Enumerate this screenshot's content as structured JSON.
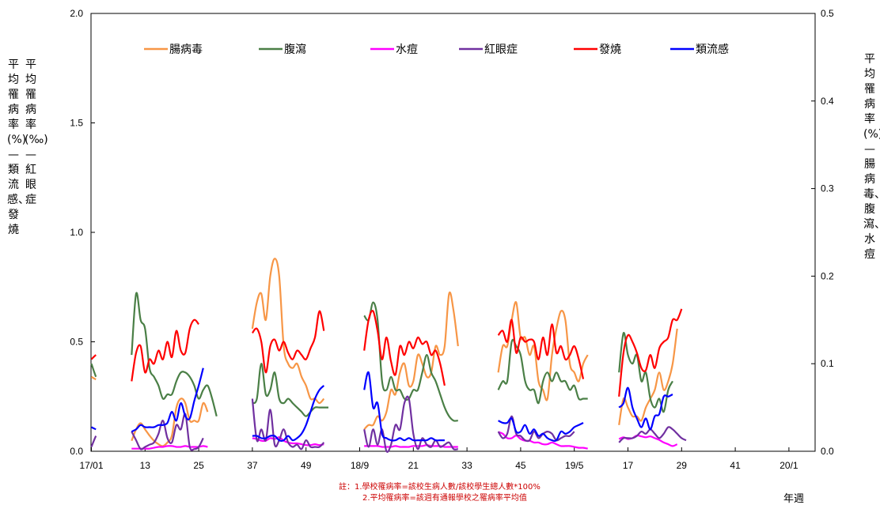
{
  "chart_data": {
    "type": "line",
    "left_axis_label_1": "平均罹病率(‰)—紅眼症",
    "left_axis_label_2": "平均罹病率(%)—類流感、發燒",
    "right_axis_label": "平均罹病率(%)—腸病毒、腹瀉、水痘",
    "xlabel": "年週",
    "y_left_lim": [
      0,
      2.0
    ],
    "y_right_lim": [
      0,
      0.5
    ],
    "y_left_ticks": [
      "0.0",
      "0.5",
      "1.0",
      "1.5",
      "2.0"
    ],
    "y_right_ticks": [
      "0.0",
      "0.1",
      "0.2",
      "0.3",
      "0.4",
      "0.5"
    ],
    "x_ticks": [
      "17/01",
      "13",
      "25",
      "37",
      "49",
      "18/9",
      "21",
      "33",
      "45",
      "19/5",
      "17",
      "29",
      "41",
      "20/1"
    ],
    "legend_placement": "top",
    "grid": false,
    "series": [
      {
        "name": "腸病毒",
        "color": "#f79646",
        "axis": "right",
        "segments": [
          {
            "start": 0,
            "values": [
              0.085,
              0.082
            ]
          },
          {
            "start": 9,
            "values": [
              0.012,
              0.025,
              0.032,
              0.025,
              0.018,
              0.012,
              0.008,
              0.006,
              0.01,
              0.018,
              0.05,
              0.06,
              0.055,
              0.035,
              0.035,
              0.035,
              0.055,
              0.045
            ]
          },
          {
            "start": 36,
            "values": [
              0.14,
              0.17,
              0.18,
              0.15,
              0.2,
              0.22,
              0.2,
              0.12,
              0.1,
              0.095,
              0.1,
              0.085,
              0.075,
              0.06,
              0.06,
              0.055,
              0.06
            ]
          },
          {
            "start": 61,
            "values": [
              0.025,
              0.03,
              0.03,
              0.04,
              0.035,
              0.045,
              0.07,
              0.065,
              0.09,
              0.1,
              0.075,
              0.08,
              0.11,
              0.1,
              0.085,
              0.09,
              0.12,
              0.11,
              0.12,
              0.18,
              0.16,
              0.12
            ]
          },
          {
            "start": 91,
            "values": [
              0.09,
              0.12,
              0.12,
              0.15,
              0.17,
              0.13,
              0.13,
              0.11,
              0.12,
              0.08,
              0.07,
              0.06,
              0.11,
              0.14,
              0.16,
              0.15,
              0.1,
              0.09,
              0.08,
              0.1,
              0.11
            ]
          },
          {
            "start": 118,
            "values": [
              0.03,
              0.06,
              0.05,
              0.04,
              0.04,
              0.035,
              0.05,
              0.06,
              0.07,
              0.09,
              0.07,
              0.08,
              0.1,
              0.14
            ]
          }
        ]
      },
      {
        "name": "腹瀉",
        "color": "#4a7f46",
        "axis": "right",
        "segments": [
          {
            "start": 0,
            "values": [
              0.1,
              0.085
            ]
          },
          {
            "start": 9,
            "values": [
              0.11,
              0.18,
              0.15,
              0.14,
              0.095,
              0.085,
              0.075,
              0.06,
              0.065,
              0.065,
              0.08,
              0.09,
              0.09,
              0.085,
              0.075,
              0.06,
              0.07,
              0.075,
              0.06,
              0.04
            ]
          },
          {
            "start": 36,
            "values": [
              0.055,
              0.06,
              0.1,
              0.065,
              0.07,
              0.09,
              0.06,
              0.055,
              0.06,
              0.055,
              0.05,
              0.045,
              0.04,
              0.045,
              0.05,
              0.05,
              0.05,
              0.05
            ]
          },
          {
            "start": 61,
            "values": [
              0.155,
              0.15,
              0.17,
              0.15,
              0.08,
              0.07,
              0.085,
              0.07,
              0.07,
              0.06,
              0.06,
              0.07,
              0.07,
              0.09,
              0.11,
              0.09,
              0.08,
              0.065,
              0.05,
              0.04,
              0.035,
              0.035
            ]
          },
          {
            "start": 91,
            "values": [
              0.07,
              0.08,
              0.08,
              0.125,
              0.12,
              0.11,
              0.08,
              0.07,
              0.07,
              0.055,
              0.08,
              0.09,
              0.08,
              0.09,
              0.08,
              0.08,
              0.07,
              0.075,
              0.06,
              0.06,
              0.06
            ]
          },
          {
            "start": 118,
            "values": [
              0.09,
              0.135,
              0.11,
              0.1,
              0.11,
              0.08,
              0.09,
              0.06,
              0.05,
              0.06,
              0.045,
              0.07,
              0.08
            ]
          }
        ]
      },
      {
        "name": "水痘",
        "color": "#ff00ff",
        "axis": "right",
        "segments": [
          {
            "start": 9,
            "values": [
              0.003,
              0.003,
              0.003,
              0.003,
              0.003,
              0.004,
              0.005,
              0.005,
              0.006,
              0.006,
              0.005,
              0.005,
              0.006,
              0.005,
              0.005,
              0.005,
              0.006,
              0.005
            ]
          },
          {
            "start": 36,
            "values": [
              0.015,
              0.014,
              0.012,
              0.012,
              0.015,
              0.014,
              0.016,
              0.012,
              0.01,
              0.009,
              0.009,
              0.008,
              0.007,
              0.007,
              0.008,
              0.007,
              0.008
            ]
          },
          {
            "start": 61,
            "values": [
              0.006,
              0.006,
              0.006,
              0.006,
              0.005,
              0.005,
              0.005,
              0.006,
              0.005,
              0.005,
              0.005,
              0.006,
              0.006,
              0.006,
              0.007,
              0.006,
              0.006,
              0.006,
              0.005,
              0.005,
              0.005,
              0.005
            ]
          },
          {
            "start": 91,
            "values": [
              0.022,
              0.02,
              0.015,
              0.015,
              0.018,
              0.014,
              0.012,
              0.012,
              0.01,
              0.01,
              0.008,
              0.008,
              0.01,
              0.008,
              0.006,
              0.006,
              0.006,
              0.005,
              0.004,
              0.004,
              0.003
            ]
          },
          {
            "start": 118,
            "values": [
              0.014,
              0.016,
              0.014,
              0.015,
              0.018,
              0.017,
              0.016,
              0.017,
              0.015,
              0.013,
              0.01,
              0.008,
              0.006,
              0.008
            ]
          }
        ]
      },
      {
        "name": "紅眼症",
        "color": "#7030a0",
        "axis": "left",
        "segments": [
          {
            "start": 0,
            "values": [
              0.02,
              0.07
            ]
          },
          {
            "start": 9,
            "values": [
              0.09,
              0.05,
              0.01,
              0.02,
              0.03,
              0.04,
              0.08,
              0.14,
              0.06,
              0.04,
              0.12,
              0.1,
              0.17,
              0.02,
              0.01,
              0.02,
              0.06
            ]
          },
          {
            "start": 36,
            "values": [
              0.24,
              0.05,
              0.1,
              0.05,
              0.19,
              0.03,
              0.05,
              0.1,
              0.04,
              0.02,
              0.03,
              0.01,
              0.05,
              0.02,
              0.02,
              0.02,
              0.04
            ]
          },
          {
            "start": 61,
            "values": [
              0.1,
              0.02,
              0.1,
              0.03,
              0.1,
              0.0,
              0.03,
              0.12,
              0.1,
              0.22,
              0.24,
              0.08,
              0.01,
              0.06,
              0.03,
              0.02,
              0.05,
              0.02,
              0.03,
              0.04,
              0.01,
              0.01
            ]
          },
          {
            "start": 91,
            "values": [
              0.09,
              0.06,
              0.08,
              0.16,
              0.08,
              0.07,
              0.05,
              0.05,
              0.09,
              0.06,
              0.08,
              0.09,
              0.08,
              0.05,
              0.06,
              0.07,
              0.07,
              0.09
            ]
          },
          {
            "start": 118,
            "values": [
              0.04,
              0.06,
              0.06,
              0.06,
              0.07,
              0.09,
              0.08,
              0.1,
              0.08,
              0.06,
              0.08,
              0.11,
              0.1,
              0.08,
              0.06,
              0.05
            ]
          }
        ]
      },
      {
        "name": "發燒",
        "color": "#ff0000",
        "axis": "left",
        "segments": [
          {
            "start": 0,
            "values": [
              0.42,
              0.44
            ]
          },
          {
            "start": 9,
            "values": [
              0.32,
              0.45,
              0.48,
              0.36,
              0.42,
              0.4,
              0.46,
              0.42,
              0.5,
              0.43,
              0.55,
              0.46,
              0.45,
              0.56,
              0.6,
              0.58
            ]
          },
          {
            "start": 36,
            "values": [
              0.54,
              0.56,
              0.5,
              0.36,
              0.48,
              0.51,
              0.46,
              0.5,
              0.45,
              0.42,
              0.46,
              0.44,
              0.42,
              0.47,
              0.52,
              0.64,
              0.55
            ]
          },
          {
            "start": 61,
            "values": [
              0.46,
              0.6,
              0.64,
              0.55,
              0.42,
              0.52,
              0.41,
              0.35,
              0.48,
              0.44,
              0.5,
              0.47,
              0.52,
              0.49,
              0.5,
              0.44,
              0.46,
              0.4,
              0.3
            ]
          },
          {
            "start": 91,
            "values": [
              0.53,
              0.55,
              0.5,
              0.6,
              0.45,
              0.52,
              0.5,
              0.51,
              0.5,
              0.42,
              0.52,
              0.44,
              0.58,
              0.45,
              0.48,
              0.42,
              0.44,
              0.48,
              0.42,
              0.33
            ]
          },
          {
            "start": 118,
            "values": [
              0.25,
              0.45,
              0.53,
              0.5,
              0.45,
              0.38,
              0.37,
              0.44,
              0.38,
              0.47,
              0.5,
              0.52,
              0.6,
              0.6,
              0.65
            ]
          }
        ]
      },
      {
        "name": "類流感",
        "color": "#0000ff",
        "axis": "left",
        "segments": [
          {
            "start": 0,
            "values": [
              0.11,
              0.1
            ]
          },
          {
            "start": 9,
            "values": [
              0.09,
              0.1,
              0.12,
              0.11,
              0.11,
              0.11,
              0.12,
              0.12,
              0.13,
              0.18,
              0.14,
              0.22,
              0.16,
              0.15,
              0.23,
              0.3,
              0.38
            ]
          },
          {
            "start": 36,
            "values": [
              0.07,
              0.07,
              0.06,
              0.06,
              0.07,
              0.07,
              0.05,
              0.05,
              0.07,
              0.05,
              0.06,
              0.08,
              0.12,
              0.18,
              0.24,
              0.28,
              0.3
            ]
          },
          {
            "start": 61,
            "values": [
              0.28,
              0.36,
              0.2,
              0.22,
              0.08,
              0.06,
              0.05,
              0.05,
              0.06,
              0.05,
              0.06,
              0.05,
              0.05,
              0.05,
              0.05,
              0.06,
              0.05,
              0.05,
              0.05
            ]
          },
          {
            "start": 91,
            "values": [
              0.14,
              0.13,
              0.13,
              0.15,
              0.09,
              0.09,
              0.12,
              0.08,
              0.1,
              0.07,
              0.08,
              0.06,
              0.05,
              0.05,
              0.09,
              0.08,
              0.09,
              0.11,
              0.12,
              0.13
            ]
          },
          {
            "start": 118,
            "values": [
              0.2,
              0.22,
              0.29,
              0.2,
              0.15,
              0.11,
              0.15,
              0.1,
              0.16,
              0.17,
              0.25,
              0.25,
              0.26
            ]
          }
        ]
      }
    ]
  },
  "notes": {
    "line1": "註：1.學校罹病率=該校生病人數/該校學生總人數*100%",
    "line2": "2.平均罹病率=該週有通報學校之罹病率平均值"
  }
}
